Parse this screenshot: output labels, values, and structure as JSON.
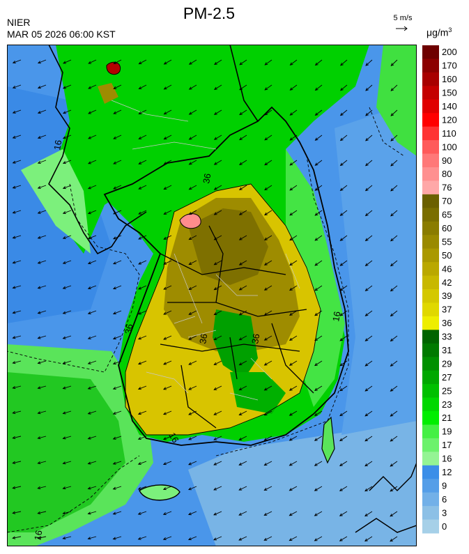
{
  "header": {
    "title": "PM-2.5",
    "agency": "NIER",
    "timestamp": "MAR 05 2026 06:00 KST",
    "wind_ref_label": "5 m/s"
  },
  "legend": {
    "unit_base": "μg/m",
    "unit_exp": "3",
    "levels": [
      {
        "label": "200",
        "color": "#6e0000"
      },
      {
        "label": "170",
        "color": "#8c0000"
      },
      {
        "label": "160",
        "color": "#a80000"
      },
      {
        "label": "150",
        "color": "#c40000"
      },
      {
        "label": "140",
        "color": "#e00000"
      },
      {
        "label": "120",
        "color": "#ff0000"
      },
      {
        "label": "110",
        "color": "#ff3333"
      },
      {
        "label": "100",
        "color": "#ff5a5a"
      },
      {
        "label": "90",
        "color": "#ff7878"
      },
      {
        "label": "80",
        "color": "#ff9090"
      },
      {
        "label": "76",
        "color": "#ffa8a8"
      },
      {
        "label": "70",
        "color": "#6b6000"
      },
      {
        "label": "65",
        "color": "#7a6e00"
      },
      {
        "label": "60",
        "color": "#8a7c00"
      },
      {
        "label": "55",
        "color": "#9a8a00"
      },
      {
        "label": "50",
        "color": "#aa9900"
      },
      {
        "label": "46",
        "color": "#baa800"
      },
      {
        "label": "42",
        "color": "#c8b800"
      },
      {
        "label": "39",
        "color": "#d4c800"
      },
      {
        "label": "37",
        "color": "#e0d800"
      },
      {
        "label": "36",
        "color": "#eeee00"
      },
      {
        "label": "33",
        "color": "#006400"
      },
      {
        "label": "31",
        "color": "#007a00"
      },
      {
        "label": "29",
        "color": "#009000"
      },
      {
        "label": "27",
        "color": "#00a800"
      },
      {
        "label": "25",
        "color": "#00c000"
      },
      {
        "label": "23",
        "color": "#00d800"
      },
      {
        "label": "21",
        "color": "#00ee00"
      },
      {
        "label": "19",
        "color": "#44f044"
      },
      {
        "label": "17",
        "color": "#6cf26c"
      },
      {
        "label": "16",
        "color": "#94f494"
      },
      {
        "label": "12",
        "color": "#3b8ee8"
      },
      {
        "label": "9",
        "color": "#559ee8"
      },
      {
        "label": "6",
        "color": "#72b0e8"
      },
      {
        "label": "3",
        "color": "#8cc0e6"
      },
      {
        "label": "0",
        "color": "#a6d0e8"
      }
    ]
  },
  "map": {
    "contour_labels": [
      "16",
      "36",
      "16",
      "36",
      "16",
      "16",
      "36",
      "36"
    ],
    "colors": {
      "sea_dark": "#2f82e6",
      "sea_mid": "#4a96ea",
      "sea_light": "#78b4e6",
      "land_green": "#00d000",
      "land_bright": "#22e822",
      "land_light": "#7cf07c",
      "land_dark": "#00a000",
      "yellow": "#d8c400",
      "olive": "#9e8c00",
      "olive_dark": "#7e7000",
      "pink": "#ff8c8c",
      "red": "#b40000",
      "border": "#000000",
      "admin": "#c8c8c8"
    }
  }
}
